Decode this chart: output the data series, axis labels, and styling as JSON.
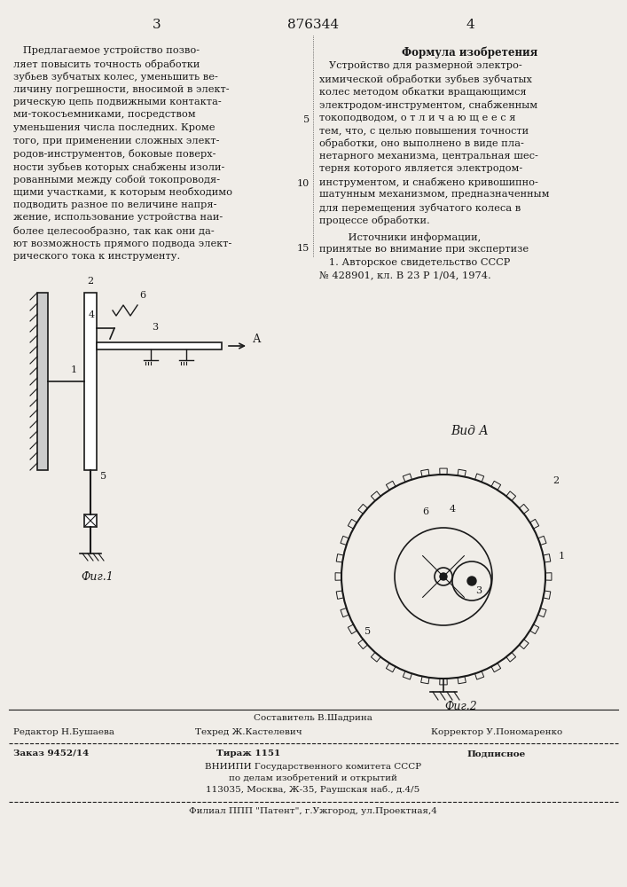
{
  "bg_color": "#f0ede8",
  "page_number_left": "3",
  "patent_number": "876344",
  "page_number_right": "4",
  "left_text": [
    "   Предлагаемое устройство позво-",
    "ляет повысить точность обработки",
    "зубьев зубчатых колес, уменьшить ве-",
    "личину погрешности, вносимой в элект-",
    "рическую цепь подвижными контакта-",
    "ми-токосъемниками, посредством",
    "уменьшения числа последних. Кроме",
    "того, при применении сложных элект-",
    "родов-инструментов, боковые поверх-",
    "ности зубьев которых снабжены изоли-",
    "рованными между собой токопроводя-",
    "щими участками, к которым необходимо",
    "подводить разное по величине напря-",
    "жение, использование устройства наи-",
    "более целесообразно, так как они да-",
    "ют возможность прямого подвода элект-",
    "рического тока к инструменту."
  ],
  "right_header": "Формула изобретения",
  "right_text": [
    "   Устройство для размерной электро-",
    "химической обработки зубьев зубчатых",
    "колес методом обкатки вращающимся",
    "электродом-инструментом, снабженным",
    "токоподводом, о т л и ч а ю щ е е с я",
    "тем, что, с целью повышения точности",
    "обработки, оно выполнено в виде пла-",
    "нетарного механизма, центральная шес-",
    "терня которого является электродом-",
    "инструментом, и снабжено кривошипно-",
    "шатунным механизмом, предназначенным",
    "для перемещения зубчатого колеса в",
    "процессе обработки."
  ],
  "sources_header": "         Источники информации,",
  "sources_text": [
    "принятые во внимание при экспертизе",
    "   1. Авторское свидетельство СССР",
    "№ 428901, кл. В 23 Р 1/04, 1974."
  ],
  "line_numbers": [
    "5",
    "10",
    "15"
  ],
  "fig1_label": "Фиг.1",
  "fig2_label": "Фиг.2",
  "view_label": "Вид А",
  "footer_line1": "Составитель В.Шадрина",
  "footer_editor": "Редактор Н.Бушаева",
  "footer_tech": "Техред Ж.Кастелевич",
  "footer_corrector": "Корректор У.Пономаренко",
  "footer_order": "Заказ 9452/14",
  "footer_print": "Тираж 1151",
  "footer_sign": "Подписное",
  "footer_org1": "ВНИИПИ Государственного комитета СССР",
  "footer_org2": "по делам изобретений и открытий",
  "footer_addr": "113035, Москва, Ж-35, Раушская наб., д.4/5",
  "footer_branch": "Филиал ППП \"Патент\", г.Ужгород, ул.Проектная,4"
}
